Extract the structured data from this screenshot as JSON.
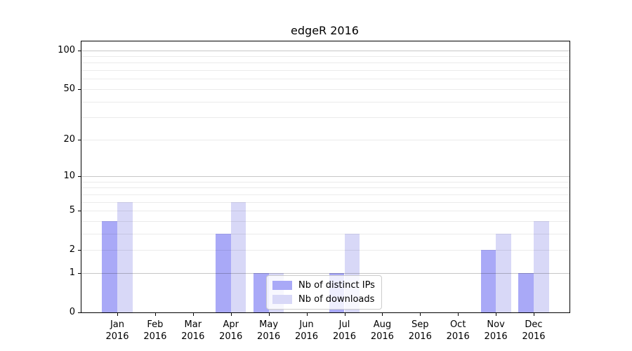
{
  "chart_data": {
    "type": "bar",
    "title": "edgeR 2016",
    "categories": [
      "Jan",
      "Feb",
      "Mar",
      "Apr",
      "May",
      "Jun",
      "Jul",
      "Aug",
      "Sep",
      "Oct",
      "Nov",
      "Dec"
    ],
    "x_tick_year": "2016",
    "series": [
      {
        "name": "Nb of distinct IPs",
        "color": "#a9a9f7",
        "values": [
          4,
          0,
          0,
          3,
          1,
          0,
          1,
          0,
          0,
          0,
          2,
          1
        ]
      },
      {
        "name": "Nb of downloads",
        "color": "#d8d8f7",
        "values": [
          6,
          0,
          0,
          6,
          1,
          0,
          3,
          0,
          0,
          0,
          3,
          4
        ]
      }
    ],
    "yscale": "log1p",
    "ylim": [
      0,
      117
    ],
    "ytick_values": [
      0,
      1,
      2,
      5,
      10,
      20,
      50,
      100
    ],
    "grid_major_values": [
      1,
      10,
      100
    ],
    "grid_minor_values": [
      2,
      3,
      4,
      5,
      6,
      7,
      8,
      9,
      20,
      30,
      40,
      50,
      60,
      70,
      80,
      90
    ],
    "grid_on": true,
    "legend_position": "lower center",
    "colors": {
      "major_grid": "rgba(0,0,0,0.22)",
      "minor_grid": "rgba(0,0,0,0.08)",
      "frame": "#000000",
      "text": "#000000",
      "background": "#ffffff"
    }
  }
}
